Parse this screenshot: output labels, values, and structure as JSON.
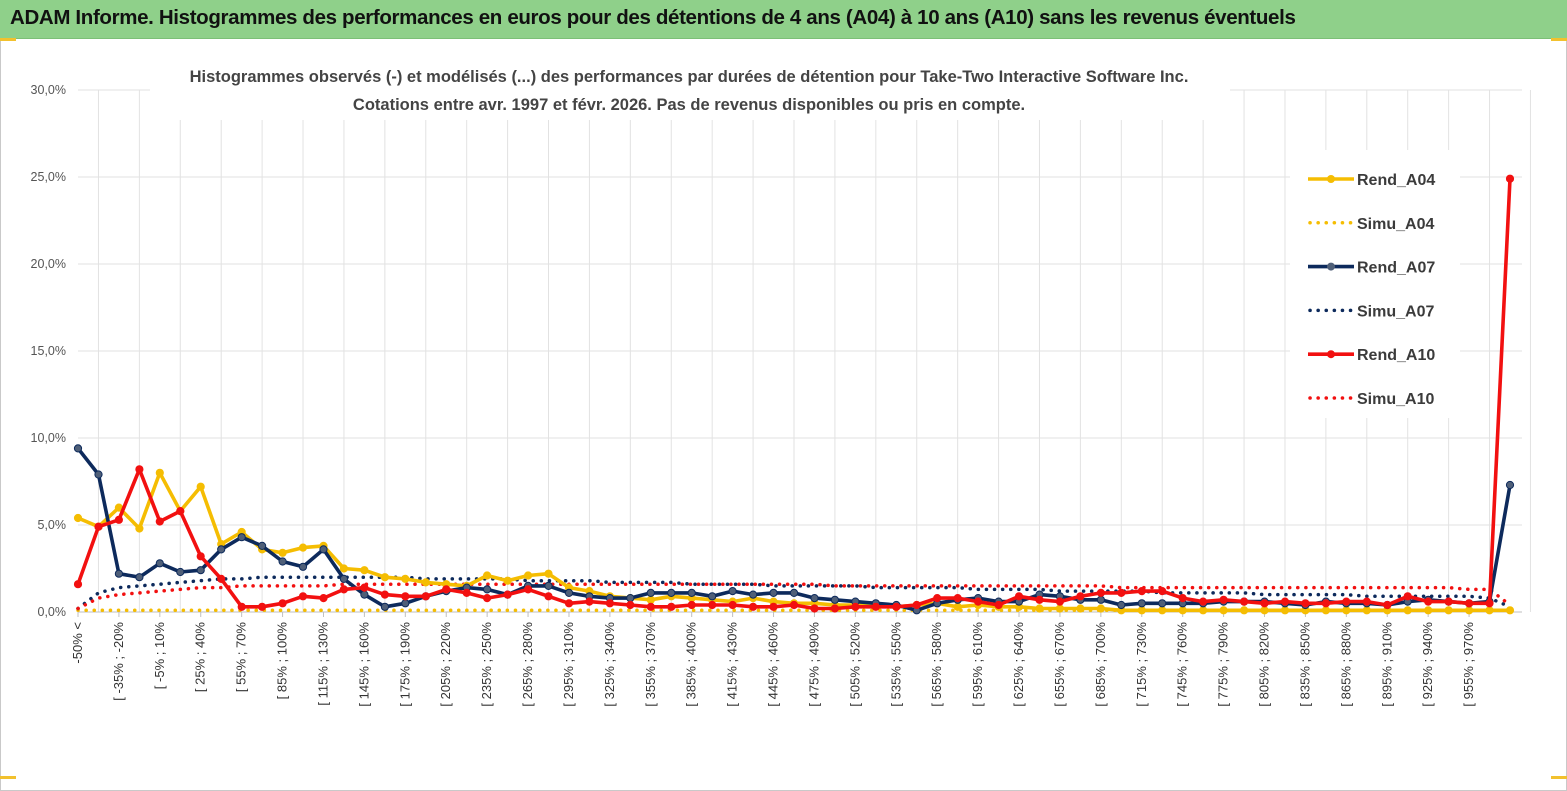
{
  "banner": {
    "title": "ADAM Informe. Histogrammes des performances en euros pour des détentions de 4 ans (A04) à 10 ans (A10) sans les revenus éventuels"
  },
  "colors": {
    "banner_bg": "#8fd08a",
    "A04": "#f5bd02",
    "A07": "#0d2a5c",
    "A10": "#f21010",
    "corner_accent": "#f2c12e"
  },
  "chart_data": {
    "type": "line",
    "title": "Histogrammes observés (-) et modélisés (...) des performances par durées de détention pour Take-Two Interactive Software Inc.",
    "subtitle": "Cotations entre avr. 1997 et févr. 2026. Pas de revenus disponibles ou pris en compte.",
    "ylim": [
      0,
      30
    ],
    "y_ticks": [
      "0,0%",
      "5,0%",
      "10,0%",
      "15,0%",
      "20,0%",
      "25,0%",
      "30,0%"
    ],
    "grid": true,
    "legend_position": "right",
    "x_labels": [
      "-50% <",
      "[ -35% ; -20%",
      "[ -5% ; 10%",
      "[ 25% ; 40%",
      "[ 55% ; 70%",
      "[ 85% ; 100%",
      "[ 115% ; 130%",
      "[ 145% ; 160%",
      "[ 175% ; 190%",
      "[ 205% ; 220%",
      "[ 235% ; 250%",
      "[ 265% ; 280%",
      "[ 295% ; 310%",
      "[ 325% ; 340%",
      "[ 355% ; 370%",
      "[ 385% ; 400%",
      "[ 415% ; 430%",
      "[ 445% ; 460%",
      "[ 475% ; 490%",
      "[ 505% ; 520%",
      "[ 535% ; 550%",
      "[ 565% ; 580%",
      "[ 595% ; 610%",
      "[ 625% ; 640%",
      "[ 655% ; 670%",
      "[ 685% ; 700%",
      "[ 715% ; 730%",
      "[ 745% ; 760%",
      "[ 775% ; 790%",
      "[ 805% ; 820%",
      "[ 835% ; 850%",
      "[ 865% ; 880%",
      "[ 895% ; 910%",
      "[ 925% ; 940%",
      "[ 955% ; 970%"
    ],
    "series": [
      {
        "name": "Rend_A04",
        "style": "solid",
        "color": "#f5bd02",
        "values": [
          5.4,
          4.9,
          6.0,
          4.8,
          8.0,
          5.8,
          7.2,
          3.9,
          4.6,
          3.6,
          3.4,
          3.7,
          3.8,
          2.5,
          2.4,
          2.0,
          1.9,
          1.7,
          1.6,
          1.5,
          2.1,
          1.8,
          2.1,
          2.2,
          1.4,
          1.2,
          0.9,
          0.8,
          0.7,
          0.9,
          0.8,
          0.7,
          0.6,
          0.8,
          0.6,
          0.5,
          0.5,
          0.4,
          0.4,
          0.4,
          0.3,
          0.4,
          0.5,
          0.3,
          0.4,
          0.3,
          0.3,
          0.2,
          0.2,
          0.2,
          0.2,
          0.1,
          0.1,
          0.1,
          0.1,
          0.1,
          0.1,
          0.1,
          0.1,
          0.1,
          0.1,
          0.1,
          0.1,
          0.1,
          0.1,
          0.1,
          0.1,
          0.1,
          0.1,
          0.1,
          0.1
        ]
      },
      {
        "name": "Simu_A04",
        "style": "dotted",
        "color": "#f5bd02",
        "values": [
          0.1,
          0.1,
          0.1,
          0.1,
          0.1,
          0.1,
          0.1,
          0.1,
          0.1,
          0.1,
          0.1,
          0.1,
          0.1,
          0.1,
          0.1,
          0.1,
          0.1,
          0.1,
          0.1,
          0.1,
          0.1,
          0.1,
          0.1,
          0.1,
          0.1,
          0.1,
          0.1,
          0.1,
          0.1,
          0.1,
          0.1,
          0.1,
          0.1,
          0.1,
          0.1,
          0.1,
          0.1,
          0.1,
          0.1,
          0.1,
          0.1,
          0.1,
          0.1,
          0.1,
          0.1,
          0.1,
          0.1,
          0.1,
          0.1,
          0.1,
          0.1,
          0.1,
          0.1,
          0.1,
          0.1,
          0.1,
          0.1,
          0.1,
          0.1,
          0.1,
          0.1,
          0.1,
          0.1,
          0.1,
          0.1,
          0.1,
          0.1,
          0.1,
          0.1,
          0.1,
          0.1
        ]
      },
      {
        "name": "Rend_A07",
        "style": "solid",
        "color": "#0d2a5c",
        "values": [
          9.4,
          7.9,
          2.2,
          2.0,
          2.8,
          2.3,
          2.4,
          3.6,
          4.3,
          3.8,
          2.9,
          2.6,
          3.6,
          1.9,
          1.0,
          0.3,
          0.5,
          0.9,
          1.2,
          1.4,
          1.3,
          1.0,
          1.5,
          1.5,
          1.1,
          0.9,
          0.8,
          0.8,
          1.1,
          1.1,
          1.1,
          0.9,
          1.2,
          1.0,
          1.1,
          1.1,
          0.8,
          0.7,
          0.6,
          0.5,
          0.4,
          0.1,
          0.5,
          0.7,
          0.8,
          0.6,
          0.6,
          1.0,
          0.9,
          0.7,
          0.7,
          0.4,
          0.5,
          0.5,
          0.5,
          0.5,
          0.6,
          0.6,
          0.6,
          0.5,
          0.4,
          0.6,
          0.5,
          0.5,
          0.4,
          0.6,
          0.7,
          0.6,
          0.5,
          0.6,
          7.3
        ]
      },
      {
        "name": "Simu_A07",
        "style": "dotted",
        "color": "#0d2a5c",
        "values": [
          0.2,
          1.1,
          1.4,
          1.5,
          1.6,
          1.7,
          1.8,
          1.9,
          1.9,
          2.0,
          2.0,
          2.0,
          2.0,
          2.0,
          2.0,
          2.0,
          2.0,
          1.9,
          1.9,
          1.9,
          1.9,
          1.9,
          1.8,
          1.8,
          1.8,
          1.8,
          1.7,
          1.7,
          1.7,
          1.7,
          1.6,
          1.6,
          1.6,
          1.6,
          1.5,
          1.5,
          1.5,
          1.5,
          1.5,
          1.4,
          1.4,
          1.4,
          1.4,
          1.4,
          1.3,
          1.3,
          1.3,
          1.3,
          1.2,
          1.2,
          1.2,
          1.2,
          1.2,
          1.1,
          1.1,
          1.1,
          1.1,
          1.1,
          1.0,
          1.0,
          1.0,
          1.0,
          1.0,
          0.9,
          0.9,
          0.9,
          0.9,
          0.9,
          0.9,
          0.8,
          0.3
        ]
      },
      {
        "name": "Rend_A10",
        "style": "solid",
        "color": "#f21010",
        "values": [
          1.6,
          4.9,
          5.3,
          8.2,
          5.2,
          5.8,
          3.2,
          1.9,
          0.3,
          0.3,
          0.5,
          0.9,
          0.8,
          1.3,
          1.4,
          1.0,
          0.9,
          0.9,
          1.3,
          1.1,
          0.8,
          1.0,
          1.3,
          0.9,
          0.5,
          0.6,
          0.5,
          0.4,
          0.3,
          0.3,
          0.4,
          0.4,
          0.4,
          0.3,
          0.3,
          0.4,
          0.2,
          0.2,
          0.3,
          0.3,
          0.3,
          0.4,
          0.8,
          0.8,
          0.6,
          0.4,
          0.9,
          0.7,
          0.6,
          0.9,
          1.1,
          1.1,
          1.2,
          1.2,
          0.8,
          0.6,
          0.7,
          0.6,
          0.5,
          0.6,
          0.5,
          0.5,
          0.6,
          0.6,
          0.4,
          0.9,
          0.6,
          0.6,
          0.5,
          0.5,
          24.9
        ]
      },
      {
        "name": "Simu_A10",
        "style": "dotted",
        "color": "#f21010",
        "values": [
          0.2,
          0.8,
          1.0,
          1.1,
          1.2,
          1.3,
          1.4,
          1.4,
          1.5,
          1.5,
          1.5,
          1.5,
          1.5,
          1.6,
          1.6,
          1.6,
          1.6,
          1.6,
          1.6,
          1.6,
          1.6,
          1.6,
          1.6,
          1.6,
          1.6,
          1.6,
          1.6,
          1.6,
          1.6,
          1.6,
          1.6,
          1.6,
          1.6,
          1.6,
          1.6,
          1.6,
          1.6,
          1.5,
          1.5,
          1.5,
          1.5,
          1.5,
          1.5,
          1.5,
          1.5,
          1.5,
          1.5,
          1.5,
          1.5,
          1.5,
          1.5,
          1.4,
          1.4,
          1.4,
          1.4,
          1.4,
          1.4,
          1.4,
          1.4,
          1.4,
          1.4,
          1.4,
          1.4,
          1.4,
          1.4,
          1.4,
          1.4,
          1.4,
          1.3,
          1.3,
          0.4
        ]
      }
    ]
  }
}
